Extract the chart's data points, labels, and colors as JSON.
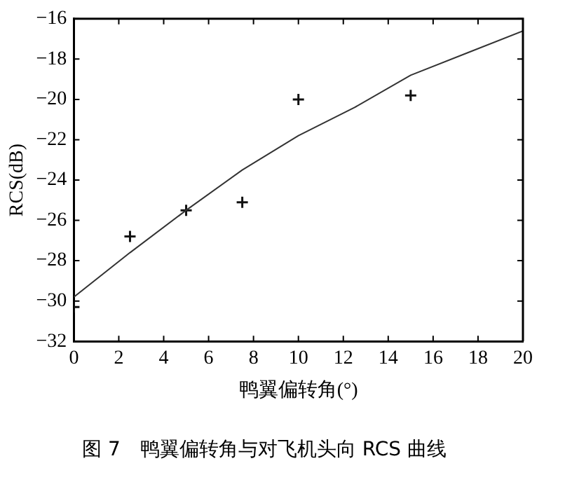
{
  "chart_data": {
    "type": "line",
    "title": "图 7　鸭翼偏转角与对飞机头向 RCS 曲线",
    "xlabel": "鸭翼偏转角(°)",
    "ylabel": "RCS(dB)",
    "series": [
      {
        "type": "line",
        "color": "#333333",
        "x": [
          0,
          2.5,
          5,
          7.5,
          10,
          12.5,
          15,
          17.5,
          20
        ],
        "values": [
          -29.8,
          -27.6,
          -25.5,
          -23.5,
          -21.8,
          -20.4,
          -18.8,
          -17.7,
          -16.6
        ],
        "marker": "none"
      },
      {
        "type": "scatter",
        "color": "#111111",
        "x": [
          0,
          2.5,
          5,
          7.5,
          10,
          15
        ],
        "values": [
          -30.3,
          -26.8,
          -25.5,
          -25.1,
          -20.0,
          -19.8
        ],
        "marker": "cross"
      }
    ],
    "xlim": [
      0,
      20
    ],
    "xticks": [
      0,
      2,
      4,
      6,
      8,
      10,
      12,
      14,
      16,
      18,
      20
    ],
    "ylim": [
      -32,
      -16
    ],
    "yticks": [
      -32,
      -30,
      -28,
      -26,
      -24,
      -22,
      -20,
      -18,
      -16
    ],
    "grid": false,
    "legend": false
  }
}
